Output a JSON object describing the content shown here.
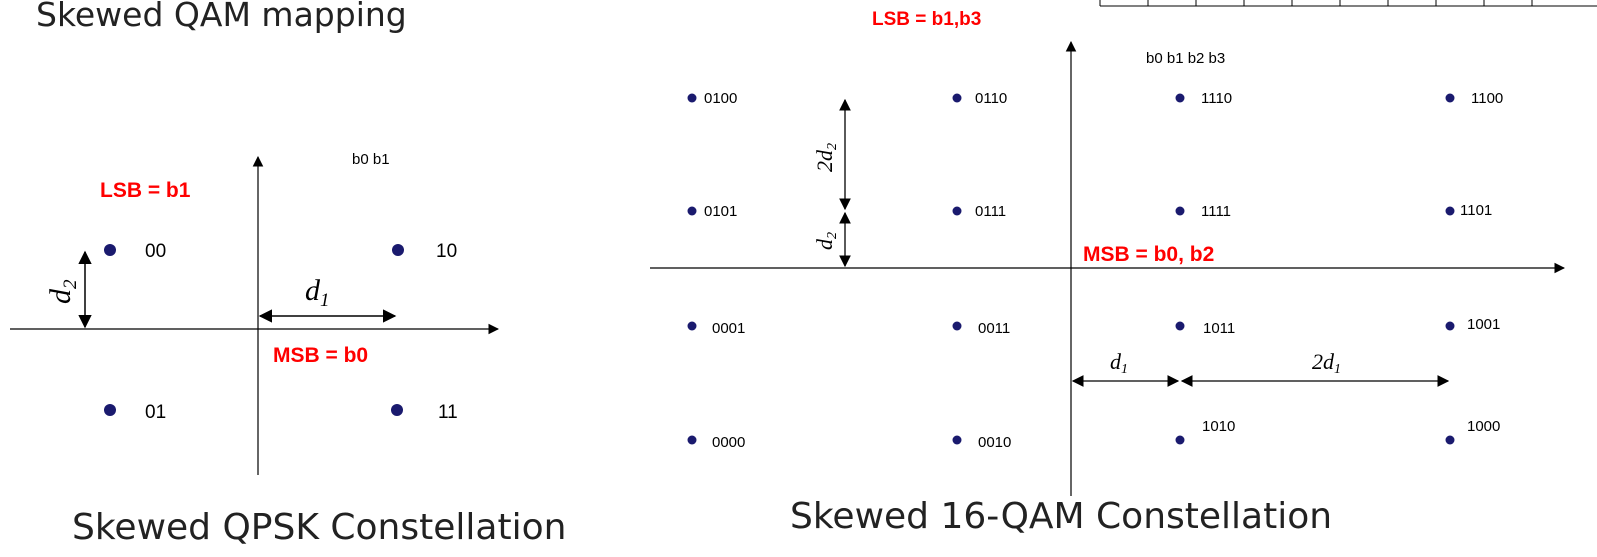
{
  "heading": "Skewed QAM mapping",
  "qpsk": {
    "caption": "Skewed QPSK Constellation",
    "bit_order": "b0 b1",
    "lsb_label": "LSB = b1",
    "msb_label": "MSB = b0",
    "d1": "d",
    "d1_sub": "1",
    "d2": "d",
    "d2_sub": "2",
    "points": [
      "00",
      "10",
      "01",
      "11"
    ]
  },
  "qam16": {
    "caption": "Skewed 16-QAM Constellation",
    "bit_order": "b0 b1 b2 b3",
    "lsb_label": "LSB = b1,b3",
    "msb_label": "MSB = b0, b2",
    "d1": "d",
    "d1_sub": "1",
    "two_d1": "2d",
    "two_d1_sub": "1",
    "d2": "d",
    "d2_sub": "2",
    "two_d2": "2d",
    "two_d2_sub": "2",
    "points": [
      "0100",
      "0110",
      "1110",
      "1100",
      "0101",
      "0111",
      "1111",
      "1101",
      "0001",
      "0011",
      "1011",
      "1001",
      "0000",
      "0010",
      "1010",
      "1000"
    ]
  },
  "colors": {
    "point": "#1a1a6e",
    "accent": "#ff0000"
  }
}
